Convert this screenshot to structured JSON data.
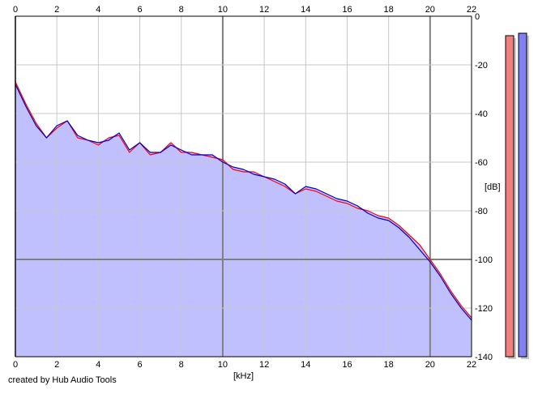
{
  "credit": "created by Hub Audio Tools",
  "colors": {
    "background": "#ffffff",
    "plot_background": "#ffffff",
    "fill": "#c0c0ff",
    "channel_left": "#ff0000",
    "channel_right": "#0000cc",
    "grid_minor": "#c8c8c8",
    "grid_major": "#808080",
    "meter_left": "#f08080",
    "meter_right": "#8080f0",
    "meter_shadow": "#c8c8c8"
  },
  "chart_data": {
    "type": "area",
    "xlabel": "[kHz]",
    "ylabel": "[dB]",
    "xlim": [
      0,
      22
    ],
    "ylim": [
      -140,
      0
    ],
    "x_ticks": [
      "0",
      "2",
      "4",
      "6",
      "8",
      "10",
      "12",
      "14",
      "16",
      "18",
      "20",
      "22"
    ],
    "y_ticks": [
      "0",
      "-20",
      "-40",
      "-60",
      "-80",
      "-100",
      "-120",
      "-140"
    ],
    "grid": true,
    "x": [
      0,
      0.5,
      1,
      1.5,
      2,
      2.5,
      3,
      3.5,
      4,
      4.5,
      5,
      5.5,
      6,
      6.5,
      7,
      7.5,
      8,
      8.5,
      9,
      9.5,
      10,
      10.5,
      11,
      11.5,
      12,
      12.5,
      13,
      13.5,
      14,
      14.5,
      15,
      15.5,
      16,
      16.5,
      17,
      17.5,
      18,
      18.5,
      19,
      19.5,
      20,
      20.5,
      21,
      21.5,
      22
    ],
    "series": [
      {
        "values": [
          -27,
          -36,
          -44,
          -50,
          -46,
          -43,
          -50,
          -51,
          -53,
          -50,
          -49,
          -56,
          -52,
          -57,
          -56,
          -52,
          -56,
          -56,
          -57,
          -58,
          -59,
          -63,
          -64,
          -64,
          -66,
          -68,
          -70,
          -73,
          -71,
          -72,
          -74,
          -76,
          -77,
          -79,
          -80,
          -82,
          -83,
          -86,
          -90,
          -94,
          -100,
          -106,
          -113,
          -119,
          -124
        ]
      },
      {
        "values": [
          -28,
          -37,
          -45,
          -50,
          -45,
          -43,
          -49,
          -51,
          -52,
          -51,
          -48,
          -55,
          -52,
          -56,
          -56,
          -53,
          -55,
          -57,
          -57,
          -57,
          -60,
          -62,
          -63,
          -65,
          -66,
          -67,
          -69,
          -73,
          -70,
          -71,
          -73,
          -75,
          -76,
          -78,
          -81,
          -83,
          -84,
          -87,
          -91,
          -96,
          -101,
          -107,
          -114,
          -120,
          -125
        ]
      }
    ],
    "meters": {
      "levels_db": [
        -8,
        -7
      ]
    }
  }
}
